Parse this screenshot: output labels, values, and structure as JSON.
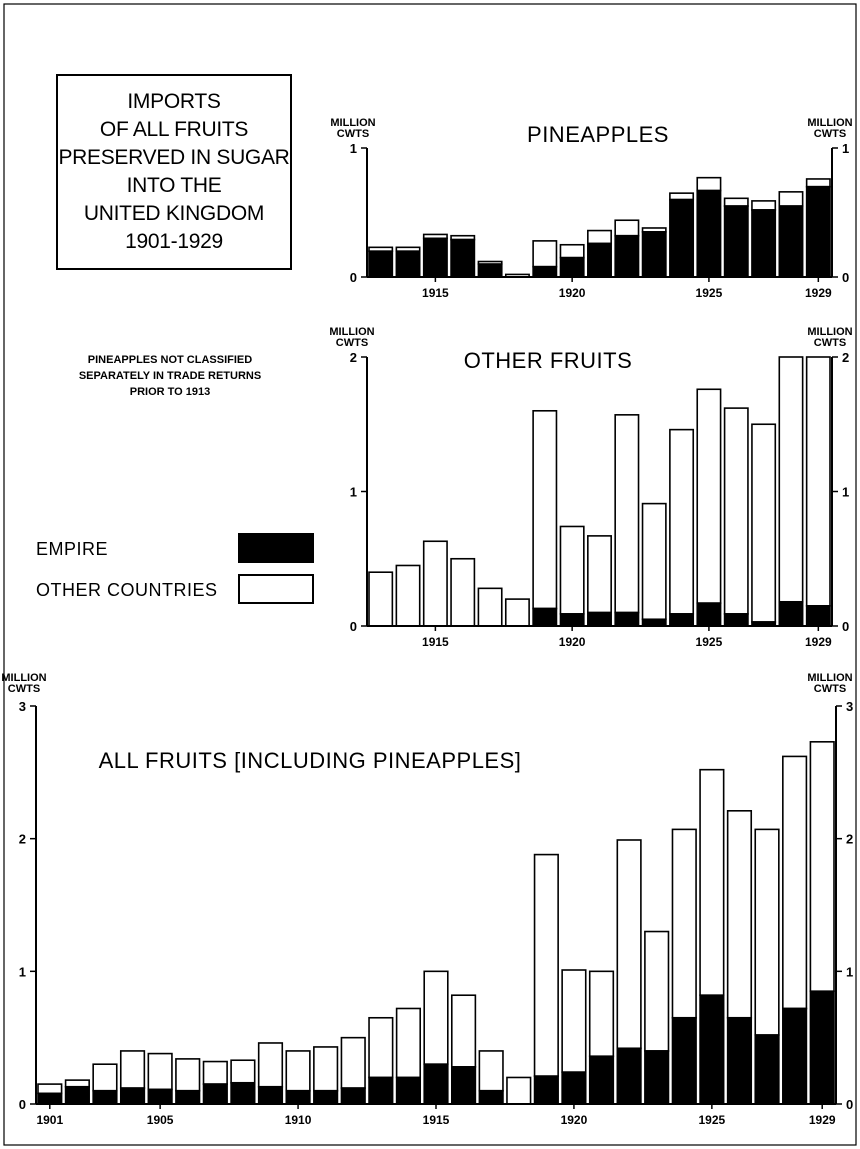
{
  "title": {
    "lines": [
      "IMPORTS",
      "OF ALL FRUITS",
      "PRESERVED IN SUGAR",
      "INTO THE",
      "UNITED KINGDOM",
      "1901-1929"
    ]
  },
  "note": {
    "lines": [
      "PINEAPPLES NOT CLASSIFIED",
      "SEPARATELY IN TRADE RETURNS",
      "PRIOR TO 1913"
    ]
  },
  "legend": {
    "empire_label": "EMPIRE",
    "other_label": "OTHER COUNTRIES",
    "empire_color": "#000000",
    "other_color": "#ffffff"
  },
  "chart_data": [
    {
      "type": "bar",
      "stacked": true,
      "title": "PINEAPPLES",
      "ylabel": "MILLION CWTS",
      "ylim": [
        0,
        1
      ],
      "yticks": [
        "0",
        "1"
      ],
      "xtick_labels": [
        "1915",
        "1920",
        "1925",
        "1929"
      ],
      "categories": [
        1913,
        1914,
        1915,
        1916,
        1917,
        1918,
        1919,
        1920,
        1921,
        1922,
        1923,
        1924,
        1925,
        1926,
        1927,
        1928,
        1929
      ],
      "series": [
        {
          "name": "EMPIRE",
          "values": [
            0.2,
            0.2,
            0.3,
            0.29,
            0.1,
            0,
            0.08,
            0.15,
            0.26,
            0.32,
            0.35,
            0.6,
            0.67,
            0.55,
            0.52,
            0.55,
            0.7
          ]
        },
        {
          "name": "OTHER COUNTRIES",
          "values": [
            0.03,
            0.03,
            0.03,
            0.03,
            0.02,
            0.02,
            0.2,
            0.1,
            0.1,
            0.12,
            0.03,
            0.05,
            0.1,
            0.06,
            0.07,
            0.11,
            0.06
          ]
        }
      ]
    },
    {
      "type": "bar",
      "stacked": true,
      "title": "OTHER FRUITS",
      "ylabel": "MILLION CWTS",
      "ylim": [
        0,
        2
      ],
      "yticks": [
        "0",
        "1",
        "2"
      ],
      "xtick_labels": [
        "1915",
        "1920",
        "1925",
        "1929"
      ],
      "categories": [
        1913,
        1914,
        1915,
        1916,
        1917,
        1918,
        1919,
        1920,
        1921,
        1922,
        1923,
        1924,
        1925,
        1926,
        1927,
        1928,
        1929
      ],
      "series": [
        {
          "name": "EMPIRE",
          "values": [
            0,
            0,
            0,
            0,
            0,
            0,
            0.13,
            0.09,
            0.1,
            0.1,
            0.05,
            0.09,
            0.17,
            0.09,
            0.03,
            0.18,
            0.15
          ]
        },
        {
          "name": "OTHER COUNTRIES",
          "values": [
            0.4,
            0.45,
            0.63,
            0.5,
            0.28,
            0.2,
            1.47,
            0.65,
            0.57,
            1.47,
            0.86,
            1.37,
            1.59,
            1.53,
            1.47,
            1.82,
            1.85
          ]
        }
      ]
    },
    {
      "type": "bar",
      "stacked": true,
      "title": "ALL FRUITS [INCLUDING PINEAPPLES]",
      "ylabel": "MILLION CWTS",
      "ylim": [
        0,
        3
      ],
      "yticks": [
        "0",
        "1",
        "2",
        "3"
      ],
      "xtick_labels": [
        "1901",
        "1905",
        "1910",
        "1915",
        "1920",
        "1925",
        "1929"
      ],
      "categories": [
        1901,
        1902,
        1903,
        1904,
        1905,
        1906,
        1907,
        1908,
        1909,
        1910,
        1911,
        1912,
        1913,
        1914,
        1915,
        1916,
        1917,
        1918,
        1919,
        1920,
        1921,
        1922,
        1923,
        1924,
        1925,
        1926,
        1927,
        1928,
        1929
      ],
      "series": [
        {
          "name": "EMPIRE",
          "values": [
            0.08,
            0.13,
            0.1,
            0.12,
            0.11,
            0.1,
            0.15,
            0.16,
            0.13,
            0.1,
            0.1,
            0.12,
            0.2,
            0.2,
            0.3,
            0.28,
            0.1,
            0,
            0.21,
            0.24,
            0.36,
            0.42,
            0.4,
            0.65,
            0.82,
            0.65,
            0.52,
            0.72,
            0.85
          ]
        },
        {
          "name": "OTHER COUNTRIES",
          "values": [
            0.07,
            0.05,
            0.2,
            0.28,
            0.27,
            0.24,
            0.17,
            0.17,
            0.33,
            0.3,
            0.33,
            0.38,
            0.45,
            0.52,
            0.7,
            0.54,
            0.3,
            0.2,
            1.67,
            0.77,
            0.64,
            1.57,
            0.9,
            1.42,
            1.7,
            1.56,
            1.55,
            1.9,
            1.88
          ]
        }
      ]
    }
  ]
}
